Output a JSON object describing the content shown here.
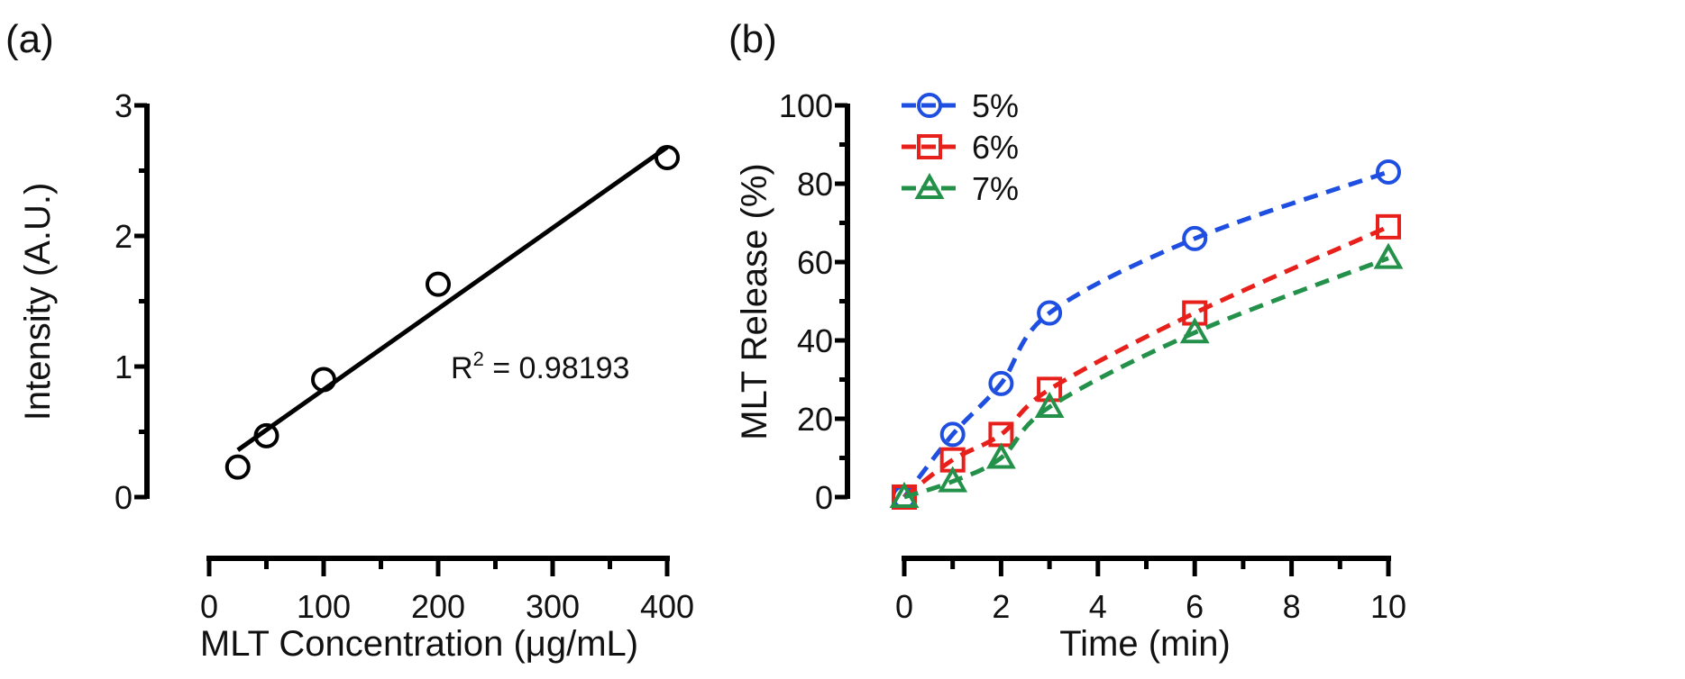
{
  "chart_data": [
    {
      "panel_label": "(a)",
      "type": "scatter",
      "xlabel": "MLT Concentration (μg/mL)",
      "ylabel": "Intensity (A.U.)",
      "xlim": [
        0,
        400
      ],
      "ylim": [
        0,
        3
      ],
      "xticks": [
        0,
        100,
        200,
        300,
        400
      ],
      "yticks": [
        0,
        1,
        2,
        3
      ],
      "grid": false,
      "color": "#000000",
      "marker": "circle",
      "points": {
        "x": [
          25,
          50,
          100,
          200,
          400
        ],
        "y": [
          0.23,
          0.47,
          0.9,
          1.63,
          2.6
        ]
      },
      "fit_line": {
        "x": [
          25,
          400
        ],
        "y": [
          0.36,
          2.68
        ]
      },
      "annotation": {
        "text": "R",
        "superscript": "2",
        "value": " = 0.98193"
      }
    },
    {
      "panel_label": "(b)",
      "type": "line",
      "xlabel": "Time (min)",
      "ylabel": "MLT Release (%)",
      "xlim": [
        0,
        10
      ],
      "ylim": [
        0,
        100
      ],
      "xticks": [
        0,
        2,
        4,
        6,
        8,
        10
      ],
      "yticks": [
        0,
        20,
        40,
        60,
        80,
        100
      ],
      "grid": false,
      "legend_position": "top-left",
      "x": [
        0,
        1,
        2,
        3,
        6,
        10
      ],
      "series": [
        {
          "name": "5%",
          "color": "#1f4fe0",
          "marker": "circle",
          "values": [
            0,
            16,
            29,
            47,
            66,
            83
          ]
        },
        {
          "name": "6%",
          "color": "#e8201c",
          "marker": "square",
          "values": [
            0,
            9.5,
            16,
            27.5,
            47,
            69
          ]
        },
        {
          "name": "7%",
          "color": "#23914a",
          "marker": "triangle",
          "values": [
            0,
            4,
            10,
            23,
            42,
            61
          ]
        }
      ]
    }
  ]
}
